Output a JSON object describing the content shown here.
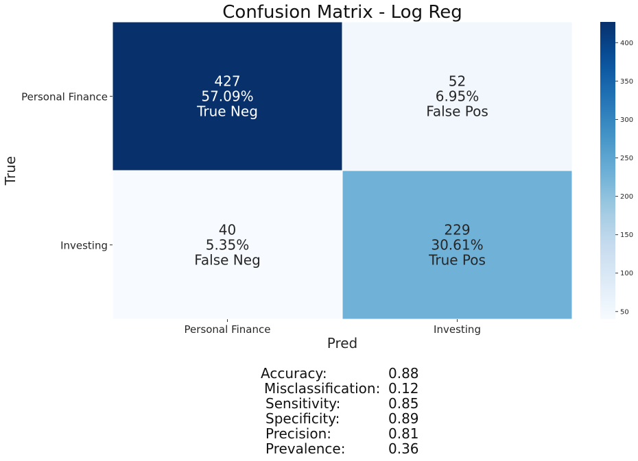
{
  "chart_data": {
    "type": "heatmap",
    "title": "Confusion Matrix - Log Reg",
    "xlabel": "Pred",
    "ylabel": "True",
    "x_categories": [
      "Personal Finance",
      "Investing"
    ],
    "y_categories": [
      "Personal Finance",
      "Investing"
    ],
    "values": [
      [
        427,
        52
      ],
      [
        40,
        229
      ]
    ],
    "cell_labels": [
      [
        [
          "427",
          "57.09%",
          "True Neg"
        ],
        [
          "52",
          "6.95%",
          "False Pos"
        ]
      ],
      [
        [
          "40",
          "5.35%",
          "False Neg"
        ],
        [
          "229",
          "30.61%",
          "True Pos"
        ]
      ]
    ],
    "colorbar": {
      "min": 40,
      "max": 427,
      "ticks": [
        50,
        100,
        150,
        200,
        250,
        300,
        350,
        400
      ],
      "colormap": "Blues"
    },
    "colors": {
      "dark_text": "#262626",
      "light_text": "#ffffff"
    }
  },
  "metrics": [
    {
      "label": "Accuracy:",
      "value": "0.88"
    },
    {
      "label": "Misclassification:",
      "value": "0.12"
    },
    {
      "label": "Sensitivity:",
      "value": "0.85"
    },
    {
      "label": "Specificity:",
      "value": "0.89"
    },
    {
      "label": "Precision:",
      "value": "0.81"
    },
    {
      "label": "Prevalence:",
      "value": "0.36"
    }
  ]
}
